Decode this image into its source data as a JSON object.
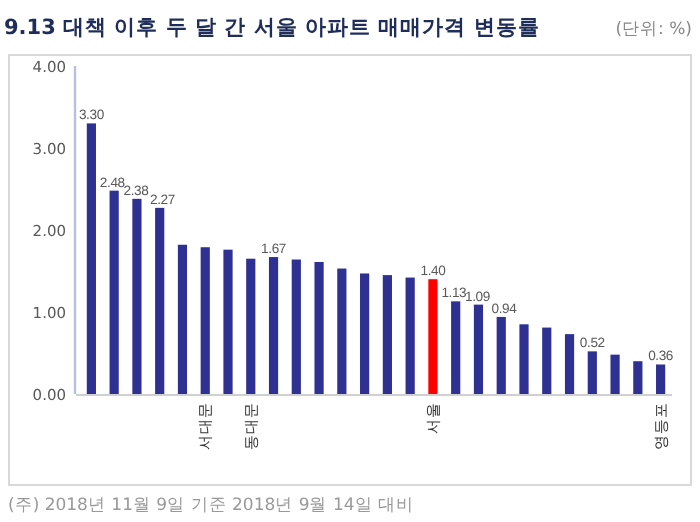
{
  "chart_data": {
    "type": "bar",
    "title": "9.13 대책 이후 두 달 간 서울 아파트 매매가격 변동률",
    "subtitle": "(단위: %)",
    "categories": [
      null,
      null,
      null,
      null,
      null,
      "서대문",
      null,
      "동대문",
      null,
      null,
      null,
      null,
      null,
      null,
      null,
      "서울",
      null,
      null,
      null,
      null,
      null,
      null,
      null,
      null,
      null,
      "영등포"
    ],
    "values": [
      3.3,
      2.48,
      2.38,
      2.27,
      1.82,
      1.79,
      1.76,
      1.65,
      1.67,
      1.64,
      1.61,
      1.53,
      1.47,
      1.45,
      1.42,
      1.4,
      1.13,
      1.09,
      0.94,
      0.85,
      0.81,
      0.73,
      0.52,
      0.48,
      0.4,
      0.36
    ],
    "colors": [
      "#2e3192",
      "#2e3192",
      "#2e3192",
      "#2e3192",
      "#2e3192",
      "#2e3192",
      "#2e3192",
      "#2e3192",
      "#2e3192",
      "#2e3192",
      "#2e3192",
      "#2e3192",
      "#2e3192",
      "#2e3192",
      "#2e3192",
      "#ff0000",
      "#2e3192",
      "#2e3192",
      "#2e3192",
      "#2e3192",
      "#2e3192",
      "#2e3192",
      "#2e3192",
      "#2e3192",
      "#2e3192",
      "#2e3192"
    ],
    "value_labels": [
      "3.30",
      "2.48",
      "2.38",
      "2.27",
      null,
      null,
      null,
      null,
      "1.67",
      null,
      null,
      null,
      null,
      null,
      null,
      "1.40",
      "1.13",
      "1.09",
      "0.94",
      null,
      null,
      null,
      "0.52",
      null,
      null,
      "0.36"
    ],
    "ylim": [
      0,
      4
    ],
    "yticks": [
      {
        "value": 0,
        "label": "0.00"
      },
      {
        "value": 1,
        "label": "1.00"
      },
      {
        "value": 2,
        "label": "2.00"
      },
      {
        "value": 3,
        "label": "3.00"
      },
      {
        "value": 4,
        "label": "4.00"
      }
    ],
    "annotations": [
      "(주) 2018년 11월 9일 기준 2018년 9월 14일 대비"
    ]
  }
}
